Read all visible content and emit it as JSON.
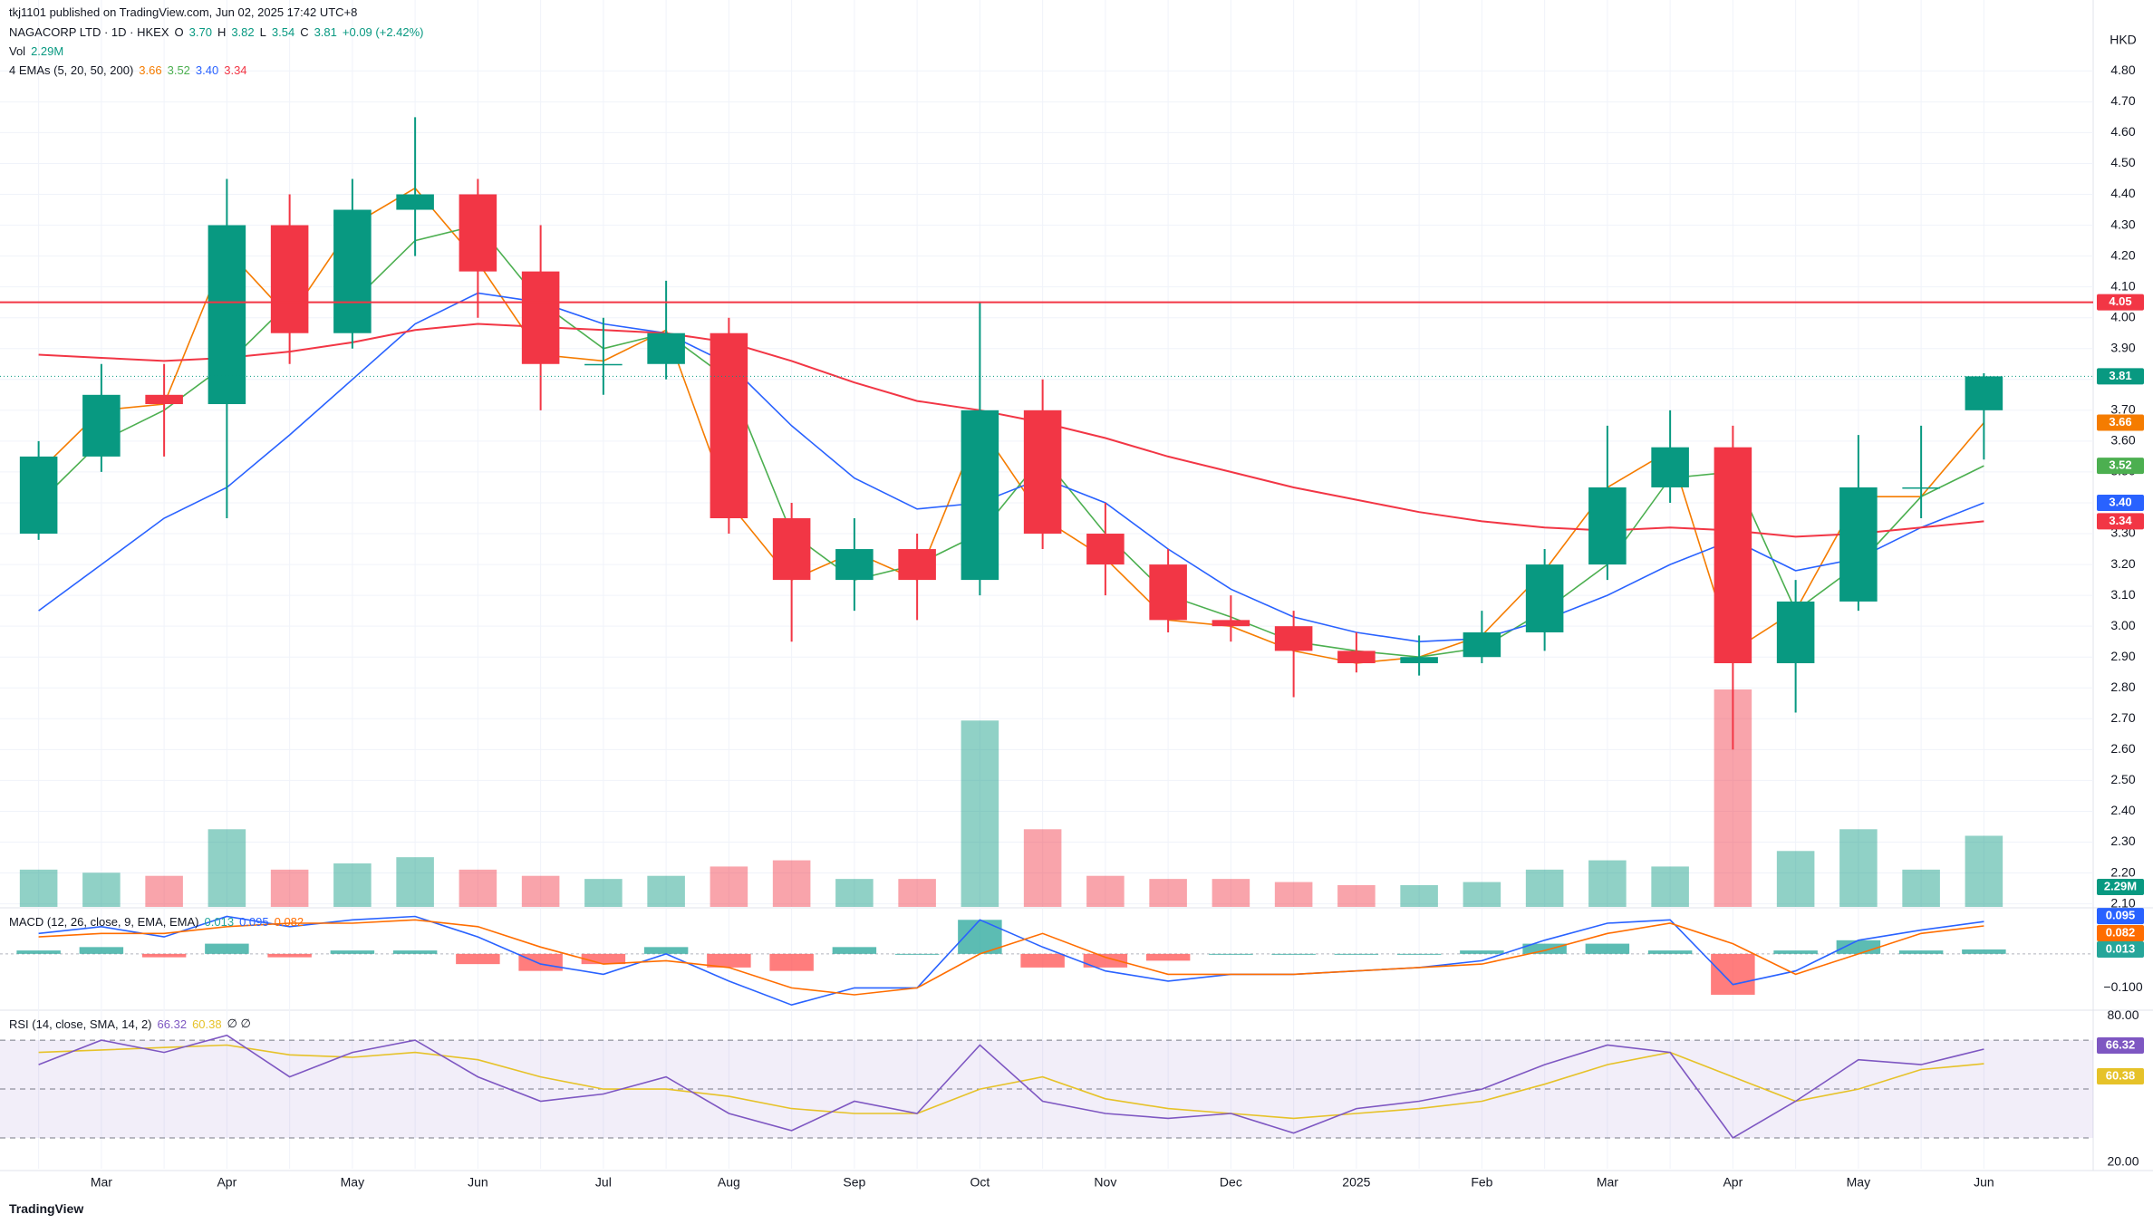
{
  "header": {
    "publisher": "tkj1101 published on TradingView.com, Jun 02, 2025 17:42 UTC+8",
    "currency": "HKD",
    "footer": "TradingView"
  },
  "chart_data": [
    {
      "type": "candlestick",
      "title": "NAGACORP LTD · 1D · HKEX",
      "ohlc_legend": [
        {
          "key": "O",
          "value": "3.70"
        },
        {
          "key": "H",
          "value": "3.82"
        },
        {
          "key": "L",
          "value": "3.54"
        },
        {
          "key": "C",
          "value": "3.81"
        }
      ],
      "change": "+0.09 (+2.42%)",
      "volume_title": "Vol",
      "volume_legend": "2.29M",
      "ema_title": "4 EMAs (5, 20, 50, 200)",
      "up_color": "#089981",
      "down_color": "#f23645",
      "grid": true,
      "categories": [
        null,
        "Mar",
        null,
        "Apr",
        null,
        "May",
        null,
        "Jun",
        null,
        "Jul",
        null,
        "Aug",
        null,
        "Sep",
        null,
        "Oct",
        null,
        "Nov",
        null,
        "Dec",
        null,
        "2025",
        null,
        "Feb",
        null,
        "Mar",
        null,
        "Apr",
        null,
        "May",
        null,
        "Jun"
      ],
      "open": [
        3.3,
        3.55,
        3.75,
        3.72,
        4.3,
        3.95,
        4.35,
        4.4,
        4.15,
        3.85,
        3.85,
        3.95,
        3.35,
        3.15,
        3.25,
        3.15,
        3.7,
        3.3,
        3.2,
        3.02,
        3.0,
        2.92,
        2.88,
        2.9,
        2.98,
        3.2,
        3.45,
        3.58,
        2.88,
        3.08,
        3.45,
        3.7
      ],
      "high": [
        3.6,
        3.85,
        3.85,
        4.45,
        4.4,
        4.45,
        4.65,
        4.45,
        4.3,
        4.0,
        4.12,
        4.0,
        3.4,
        3.35,
        3.3,
        4.05,
        3.8,
        3.4,
        3.25,
        3.1,
        3.05,
        2.98,
        2.97,
        3.05,
        3.25,
        3.65,
        3.7,
        3.65,
        3.15,
        3.62,
        3.65,
        3.82
      ],
      "low": [
        3.28,
        3.5,
        3.55,
        3.35,
        3.85,
        3.9,
        4.2,
        4.0,
        3.7,
        3.75,
        3.8,
        3.3,
        2.95,
        3.05,
        3.02,
        3.1,
        3.25,
        3.1,
        2.98,
        2.95,
        2.77,
        2.85,
        2.84,
        2.88,
        2.92,
        3.15,
        3.4,
        2.6,
        2.72,
        3.05,
        3.35,
        3.54
      ],
      "close": [
        3.55,
        3.75,
        3.72,
        4.3,
        3.95,
        4.35,
        4.4,
        4.15,
        3.85,
        3.85,
        3.95,
        3.35,
        3.15,
        3.25,
        3.15,
        3.7,
        3.3,
        3.2,
        3.02,
        3.0,
        2.92,
        2.88,
        2.9,
        2.98,
        3.2,
        3.45,
        3.58,
        2.88,
        3.08,
        3.45,
        3.45,
        3.81
      ],
      "volume": [
        1.2,
        1.1,
        1.0,
        2.5,
        1.2,
        1.4,
        1.6,
        1.2,
        1.0,
        0.9,
        1.0,
        1.3,
        1.5,
        0.9,
        0.9,
        6.0,
        2.5,
        1.0,
        0.9,
        0.9,
        0.8,
        0.7,
        0.7,
        0.8,
        1.2,
        1.5,
        1.3,
        7.0,
        1.8,
        2.5,
        1.2,
        2.29
      ],
      "series": [
        {
          "color": "#f57c00",
          "legend_value": "3.66",
          "values": [
            3.5,
            3.7,
            3.72,
            4.22,
            4.0,
            4.3,
            4.42,
            4.18,
            3.88,
            3.86,
            3.96,
            3.4,
            3.15,
            3.24,
            3.15,
            3.65,
            3.35,
            3.22,
            3.02,
            3.0,
            2.92,
            2.88,
            2.9,
            2.97,
            3.18,
            3.45,
            3.57,
            2.92,
            3.05,
            3.42,
            3.42,
            3.66
          ]
        },
        {
          "color": "#4caf50",
          "legend_value": "3.52",
          "values": [
            3.4,
            3.6,
            3.7,
            3.85,
            4.05,
            4.05,
            4.25,
            4.3,
            4.05,
            3.9,
            3.95,
            3.8,
            3.3,
            3.15,
            3.2,
            3.3,
            3.55,
            3.3,
            3.1,
            3.03,
            2.95,
            2.92,
            2.9,
            2.93,
            3.05,
            3.2,
            3.48,
            3.5,
            3.05,
            3.2,
            3.42,
            3.52
          ]
        },
        {
          "color": "#2962ff",
          "legend_value": "3.40",
          "values": [
            3.05,
            3.2,
            3.35,
            3.45,
            3.62,
            3.8,
            3.98,
            4.08,
            4.05,
            3.98,
            3.95,
            3.85,
            3.65,
            3.48,
            3.38,
            3.4,
            3.48,
            3.4,
            3.25,
            3.12,
            3.03,
            2.98,
            2.95,
            2.96,
            3.02,
            3.1,
            3.2,
            3.28,
            3.18,
            3.22,
            3.32,
            3.4
          ]
        },
        {
          "color": "#f23645",
          "legend_value": "3.34",
          "values": [
            3.88,
            3.87,
            3.86,
            3.87,
            3.89,
            3.92,
            3.96,
            3.98,
            3.97,
            3.96,
            3.95,
            3.92,
            3.86,
            3.79,
            3.73,
            3.7,
            3.66,
            3.61,
            3.55,
            3.5,
            3.45,
            3.41,
            3.37,
            3.34,
            3.32,
            3.31,
            3.32,
            3.31,
            3.29,
            3.3,
            3.32,
            3.34
          ]
        }
      ],
      "hline": {
        "value": 4.05,
        "color": "#f23645"
      },
      "ylim": [
        2.09,
        5.03
      ],
      "yticks": [
        {
          "value": 2.1,
          "label": "2.10"
        },
        {
          "value": 2.2,
          "label": "2.20"
        },
        {
          "value": 2.3,
          "label": "2.30"
        },
        {
          "value": 2.4,
          "label": "2.40"
        },
        {
          "value": 2.5,
          "label": "2.50"
        },
        {
          "value": 2.6,
          "label": "2.60"
        },
        {
          "value": 2.7,
          "label": "2.70"
        },
        {
          "value": 2.8,
          "label": "2.80"
        },
        {
          "value": 2.9,
          "label": "2.90"
        },
        {
          "value": 3.0,
          "label": "3.00"
        },
        {
          "value": 3.1,
          "label": "3.10"
        },
        {
          "value": 3.2,
          "label": "3.20"
        },
        {
          "value": 3.3,
          "label": "3.30"
        },
        {
          "value": 3.4,
          "label": "3.40"
        },
        {
          "value": 3.5,
          "label": "3.50"
        },
        {
          "value": 3.6,
          "label": "3.60"
        },
        {
          "value": 3.7,
          "label": "3.70"
        },
        {
          "value": 3.8,
          "label": "3.80"
        },
        {
          "value": 3.9,
          "label": "3.90"
        },
        {
          "value": 4.0,
          "label": "4.00"
        },
        {
          "value": 4.1,
          "label": "4.10"
        },
        {
          "value": 4.2,
          "label": "4.20"
        },
        {
          "value": 4.3,
          "label": "4.30"
        },
        {
          "value": 4.4,
          "label": "4.40"
        },
        {
          "value": 4.5,
          "label": "4.50"
        },
        {
          "value": 4.6,
          "label": "4.60"
        },
        {
          "value": 4.7,
          "label": "4.70"
        },
        {
          "value": 4.8,
          "label": "4.80"
        }
      ]
    },
    {
      "type": "macd",
      "title": "MACD (12, 26, close, 9, EMA, EMA)",
      "histogram": {
        "up_color": "#26a69a",
        "down_color": "#ff5252",
        "values": [
          0.01,
          0.02,
          -0.01,
          0.03,
          -0.01,
          0.01,
          0.01,
          -0.03,
          -0.05,
          -0.03,
          0.02,
          -0.04,
          -0.05,
          0.02,
          0.0,
          0.1,
          -0.04,
          -0.04,
          -0.02,
          0.0,
          0.0,
          0.0,
          0.0,
          0.01,
          0.03,
          0.03,
          0.01,
          -0.12,
          0.01,
          0.04,
          0.01,
          0.013
        ]
      },
      "macd": {
        "color": "#2962ff",
        "values": [
          0.06,
          0.08,
          0.05,
          0.11,
          0.08,
          0.1,
          0.11,
          0.05,
          -0.03,
          -0.06,
          0.0,
          -0.08,
          -0.15,
          -0.1,
          -0.1,
          0.1,
          0.02,
          -0.05,
          -0.08,
          -0.06,
          -0.06,
          -0.05,
          -0.04,
          -0.02,
          0.04,
          0.09,
          0.1,
          -0.09,
          -0.05,
          0.04,
          0.07,
          0.095
        ]
      },
      "signal": {
        "color": "#ff6d00",
        "values": [
          0.05,
          0.06,
          0.06,
          0.08,
          0.09,
          0.09,
          0.1,
          0.08,
          0.02,
          -0.03,
          -0.02,
          -0.04,
          -0.1,
          -0.12,
          -0.1,
          0.0,
          0.06,
          -0.01,
          -0.06,
          -0.06,
          -0.06,
          -0.05,
          -0.04,
          -0.03,
          0.01,
          0.06,
          0.09,
          0.03,
          -0.06,
          0.0,
          0.06,
          0.082
        ]
      },
      "ylim": [
        -0.16,
        0.13
      ],
      "yticks": [
        {
          "value": -0.1,
          "label": "−0.100"
        }
      ]
    },
    {
      "type": "rsi",
      "title": "RSI (14, close, SMA, 14, 2)",
      "extra": "∅ ∅",
      "rsi": {
        "color": "#7e57c2",
        "values": [
          60,
          70,
          65,
          72,
          55,
          65,
          70,
          55,
          45,
          48,
          55,
          40,
          33,
          45,
          40,
          68,
          45,
          40,
          38,
          40,
          32,
          42,
          45,
          50,
          60,
          68,
          65,
          30,
          45,
          62,
          60,
          66.32
        ]
      },
      "sma": {
        "color": "#e6c229",
        "values": [
          65,
          66,
          67,
          68,
          64,
          63,
          65,
          62,
          55,
          50,
          50,
          47,
          42,
          40,
          40,
          50,
          55,
          46,
          42,
          40,
          38,
          40,
          42,
          45,
          52,
          60,
          65,
          55,
          45,
          50,
          58,
          60.38
        ]
      },
      "bands": [
        30,
        50,
        70
      ],
      "ylim": [
        17.4,
        81.9
      ],
      "yticks": [
        {
          "value": 20,
          "label": "20.00"
        },
        {
          "value": 80,
          "label": "80.00"
        }
      ]
    }
  ]
}
